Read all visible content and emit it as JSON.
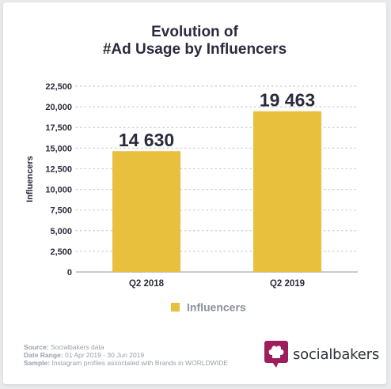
{
  "title_line1": "Evolution of",
  "title_line2": "#Ad Usage by Influencers",
  "chart_data": {
    "type": "bar",
    "categories": [
      "Q2 2018",
      "Q2 2019"
    ],
    "series": [
      {
        "name": "Influencers",
        "values": [
          14630,
          19463
        ]
      }
    ],
    "data_labels": [
      "14 630",
      "19 463"
    ],
    "ylabel": "Influencers",
    "ylim": [
      0,
      22500
    ],
    "yticks": [
      0,
      2500,
      5000,
      7500,
      10000,
      12500,
      15000,
      17500,
      20000,
      22500
    ],
    "ytick_labels": [
      "0",
      "2,500",
      "5,000",
      "7,500",
      "10,000",
      "12,500",
      "15,000",
      "17,500",
      "20,000",
      "22,500"
    ],
    "grid": true,
    "legend_position": "bottom",
    "bar_color": "#e9bf3e"
  },
  "footer": {
    "source_label": "Source:",
    "source_value": "Socialbakers data",
    "date_label": "Date Range:",
    "date_value": "01 Apr 2019 - 30 Jun 2019",
    "sample_label": "Sample:",
    "sample_value": "Instagram profiles associated with Brands in WORLDWIDE"
  },
  "brand": {
    "name": "socialbakers",
    "color": "#9d1e5b",
    "icon": "chef-hat-icon"
  }
}
